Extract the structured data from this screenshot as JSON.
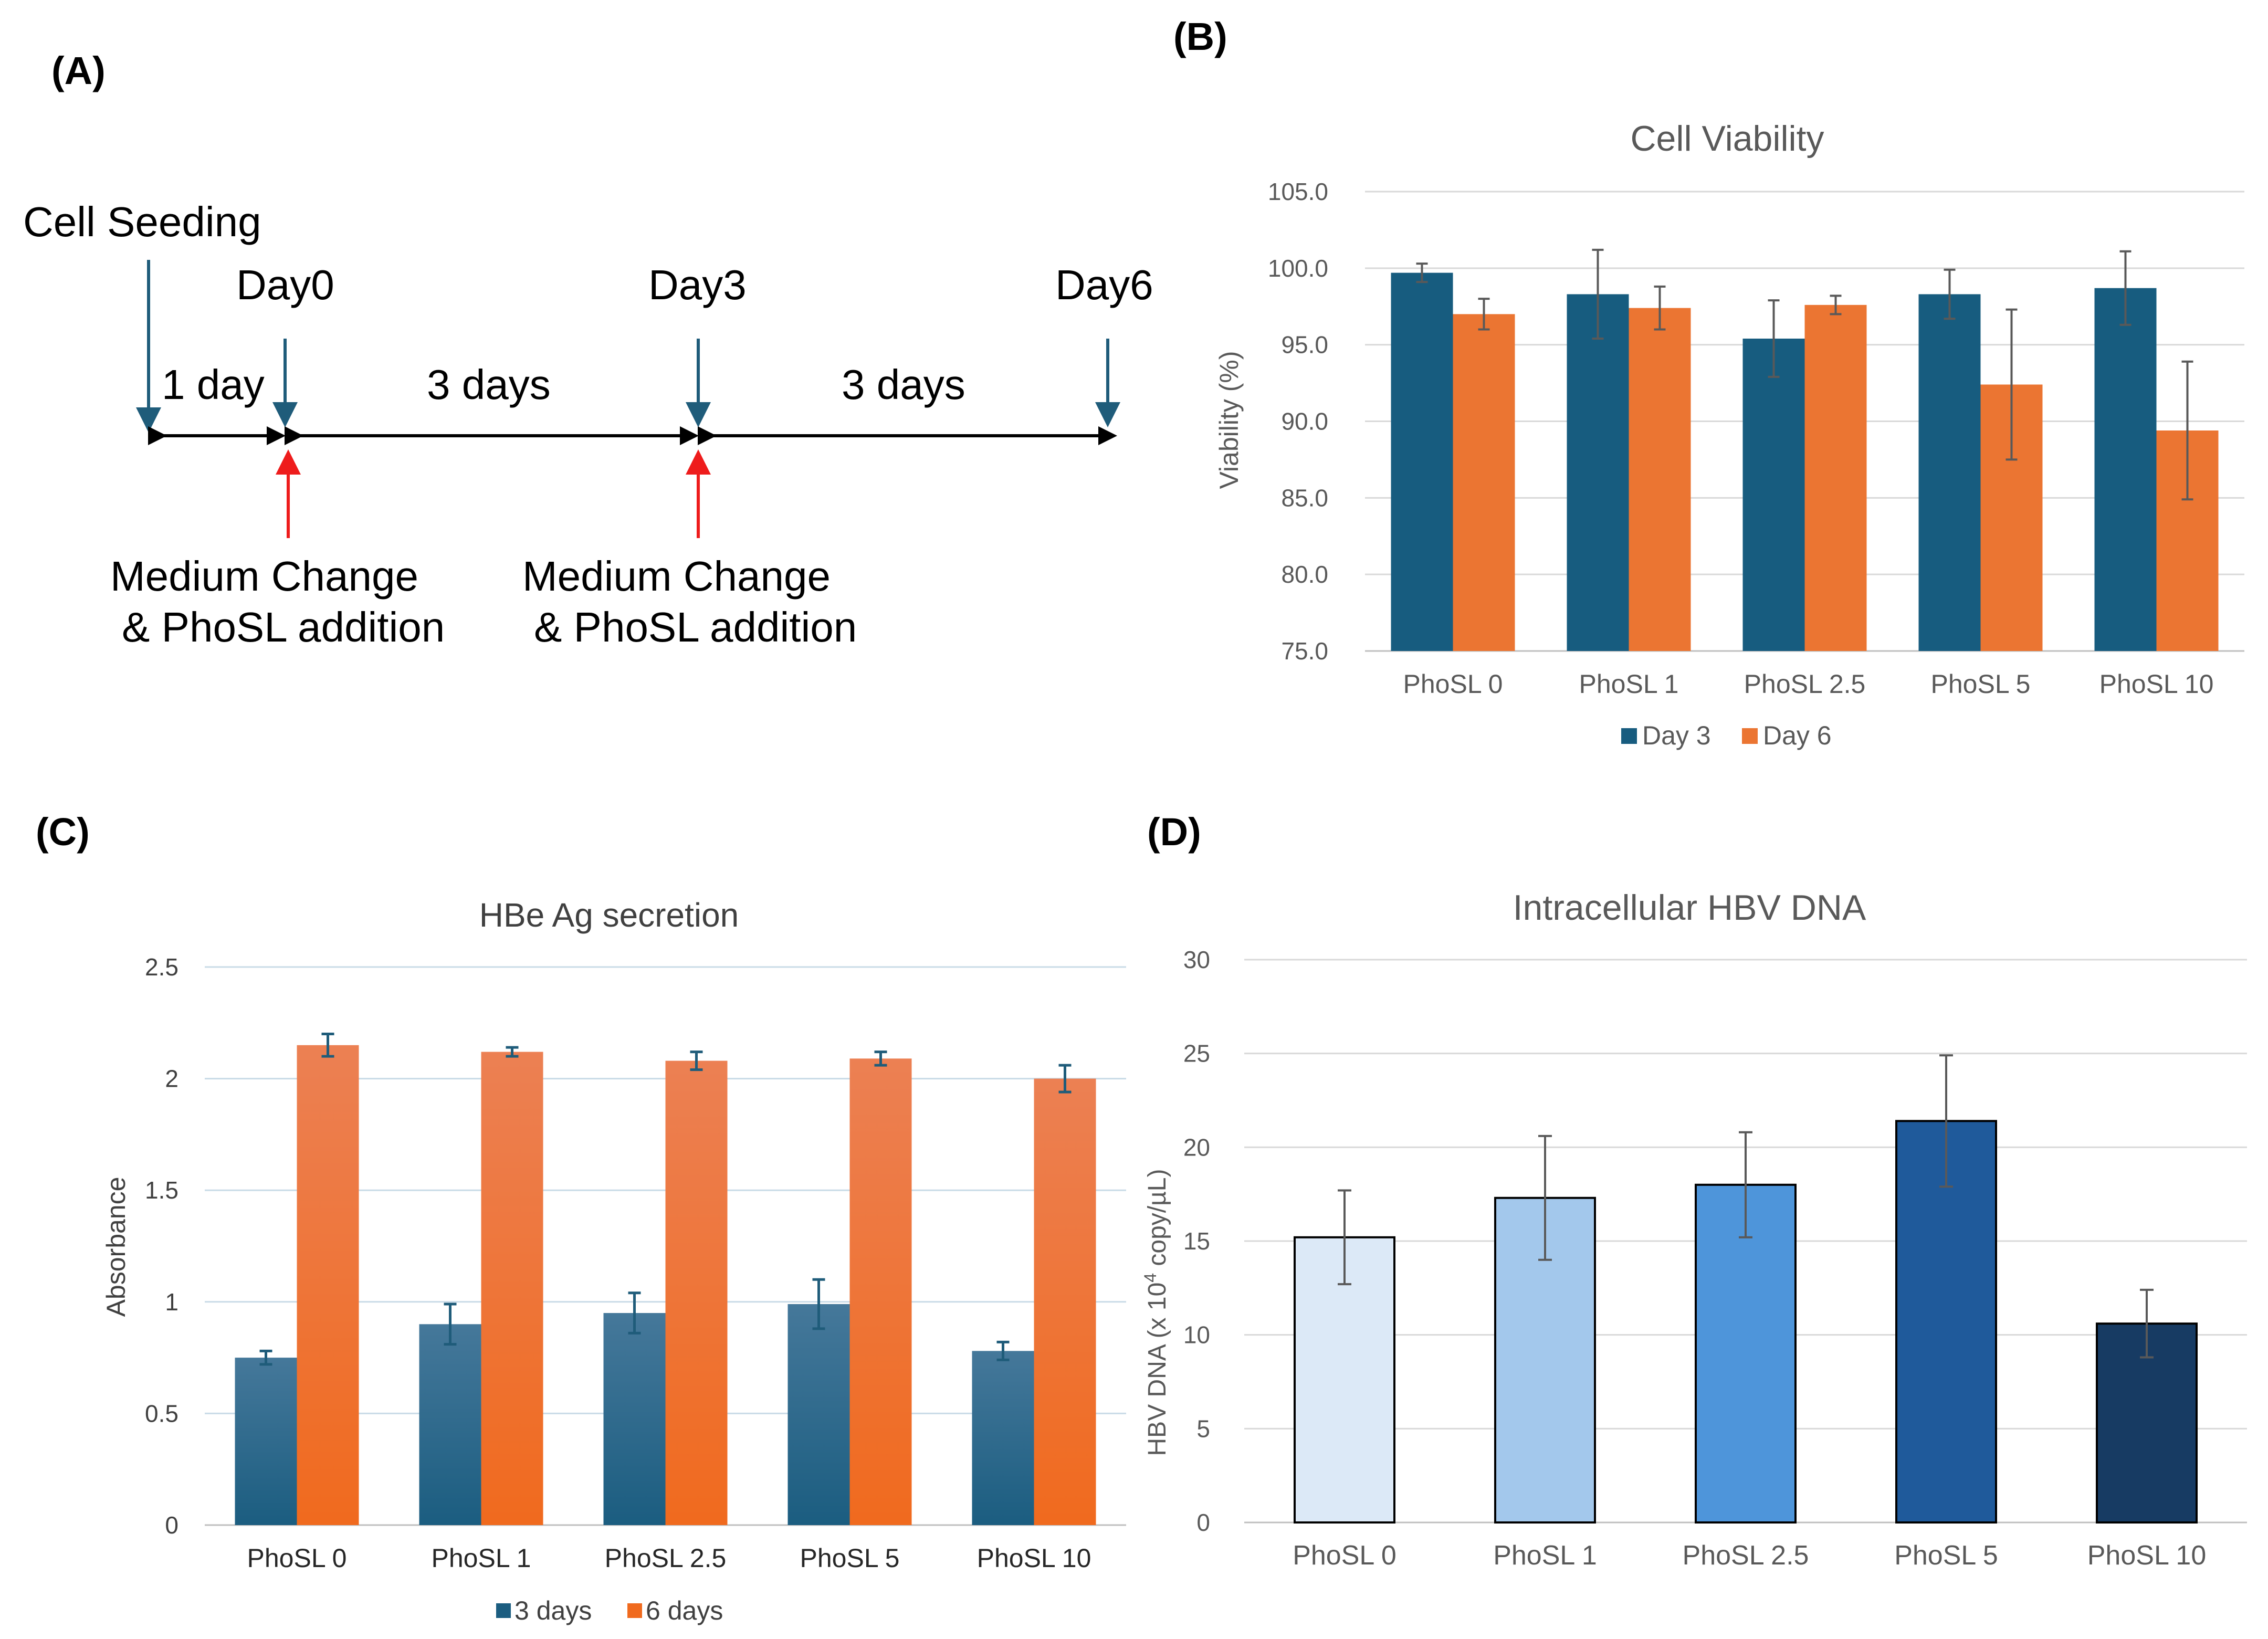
{
  "panels": {
    "a": {
      "label": "(A)",
      "cell_seeding": "Cell Seeding",
      "days": [
        "Day0",
        "Day3",
        "Day6"
      ],
      "intervals": [
        "1 day",
        "3 days",
        "3 days"
      ],
      "medium_change_line1": "Medium Change",
      "medium_change_line2": "& PhoSL addition",
      "colors": {
        "blue_arrow": "#1f5c7a",
        "red_arrow": "#ee1c1c",
        "axis": "#000000"
      }
    },
    "b": {
      "label": "(B)"
    },
    "c": {
      "label": "(C)"
    },
    "d": {
      "label": "(D)"
    }
  },
  "chart_data": [
    {
      "id": "b",
      "type": "bar",
      "title": "Cell Viability",
      "ylabel": "Viability (%)",
      "xlabel": "",
      "categories": [
        "PhoSL 0",
        "PhoSL 1",
        "PhoSL 2.5",
        "PhoSL 5",
        "PhoSL 10"
      ],
      "ylim": [
        75.0,
        105.0
      ],
      "yticks": [
        75.0,
        80.0,
        85.0,
        90.0,
        95.0,
        100.0,
        105.0
      ],
      "ytick_labels": [
        "75.0",
        "80.0",
        "85.0",
        "90.0",
        "95.0",
        "100.0",
        "105.0"
      ],
      "grid": true,
      "legend": "bottom",
      "series": [
        {
          "name": "Day 3",
          "color": "#175c7f",
          "values": [
            99.7,
            98.3,
            95.4,
            98.3,
            98.7
          ],
          "errors": [
            0.6,
            2.9,
            2.5,
            1.6,
            2.4
          ]
        },
        {
          "name": "Day 6",
          "color": "#eb7532",
          "values": [
            97.0,
            97.4,
            97.6,
            92.4,
            89.4
          ],
          "errors": [
            1.0,
            1.4,
            0.6,
            4.9,
            4.5
          ]
        }
      ]
    },
    {
      "id": "c",
      "type": "bar",
      "title": "HBe Ag secretion",
      "ylabel": "Absorbance",
      "xlabel": "",
      "categories": [
        "PhoSL 0",
        "PhoSL 1",
        "PhoSL 2.5",
        "PhoSL 5",
        "PhoSL 10"
      ],
      "ylim": [
        0,
        2.5
      ],
      "yticks": [
        0,
        0.5,
        1,
        1.5,
        2,
        2.5
      ],
      "ytick_labels": [
        "0",
        "0.5",
        "1",
        "1.5",
        "2",
        "2.5"
      ],
      "grid": true,
      "legend": "bottom",
      "series": [
        {
          "name": "3 days",
          "color": "#1b5d80",
          "color_light": "#45789a",
          "values": [
            0.75,
            0.9,
            0.95,
            0.99,
            0.78
          ],
          "errors": [
            0.03,
            0.09,
            0.09,
            0.11,
            0.04
          ]
        },
        {
          "name": "6 days",
          "color": "#f06a1e",
          "color_light": "#ec8053",
          "values": [
            2.15,
            2.12,
            2.08,
            2.09,
            2.0
          ],
          "errors": [
            0.05,
            0.02,
            0.04,
            0.03,
            0.06
          ]
        }
      ]
    },
    {
      "id": "d",
      "type": "bar",
      "title": "Intracellular HBV DNA",
      "ylabel": "HBV DNA (x 10",
      "ylabel_sup": "4",
      "ylabel_tail": " copy/µL)",
      "xlabel": "",
      "categories": [
        "PhoSL 0",
        "PhoSL 1",
        "PhoSL 2.5",
        "PhoSL 5",
        "PhoSL 10"
      ],
      "ylim": [
        0,
        30
      ],
      "yticks": [
        0,
        5,
        10,
        15,
        20,
        25,
        30
      ],
      "ytick_labels": [
        "0",
        "5",
        "10",
        "15",
        "20",
        "25",
        "30"
      ],
      "grid": true,
      "legend": "none",
      "series": [
        {
          "name": "HBV DNA",
          "values": [
            15.2,
            17.3,
            18.0,
            21.4,
            10.6
          ],
          "errors": [
            2.5,
            3.3,
            2.8,
            3.5,
            1.8
          ],
          "colors": [
            "#dce9f7",
            "#a3c8ec",
            "#4e95da",
            "#1f5a9b",
            "#173b63"
          ]
        }
      ]
    }
  ]
}
